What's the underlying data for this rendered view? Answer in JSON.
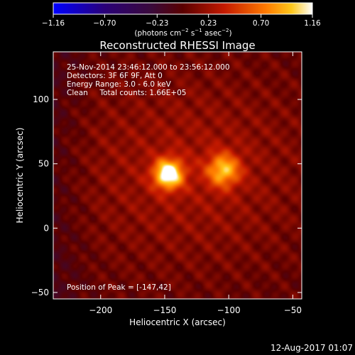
{
  "chart_data": {
    "type": "heatmap",
    "title": "Reconstructed RHESSI Image",
    "xlabel": "Heliocentric X (arcsec)",
    "ylabel": "Heliocentric Y (arcsec)",
    "xlim": [
      -237,
      -43
    ],
    "ylim": [
      -55,
      137
    ],
    "x_ticks": [
      -200,
      -150,
      -100,
      -50
    ],
    "y_ticks": [
      -50,
      0,
      50,
      100
    ],
    "colorbar": {
      "label_parts": [
        "(photons cm",
        "−2",
        " s",
        "−1",
        " asec",
        "−2",
        ")"
      ],
      "range": [
        -1.16,
        1.16
      ],
      "tick_values": [
        -1.16,
        -0.7,
        -0.23,
        0.23,
        0.7,
        1.16
      ],
      "tick_labels": [
        "−1.16",
        "−0.70",
        "−0.23",
        "0.23",
        "0.70",
        "1.16"
      ]
    },
    "annotations": [
      "25-Nov-2014 23:46:12.000 to 23:56:12.000",
      "Detectors: 3F 6F 9F, Att 0",
      "Energy Range: 3.0 - 6.0 keV",
      "Clean     Total counts: 1.66E+05"
    ],
    "peak_label": "Position of Peak = [-147,42]",
    "sources": [
      {
        "x": -147,
        "y": 42,
        "amplitude": 1.16,
        "sigma": 8
      },
      {
        "x": -104,
        "y": 45,
        "amplitude": 0.78,
        "sigma": 9
      }
    ],
    "diffuse_emission": {
      "x": -130,
      "y": 45,
      "amplitude": 0.25,
      "sigma_x": 70,
      "sigma_y": 55
    },
    "footer_date": "12-Aug-2017 01:07"
  }
}
